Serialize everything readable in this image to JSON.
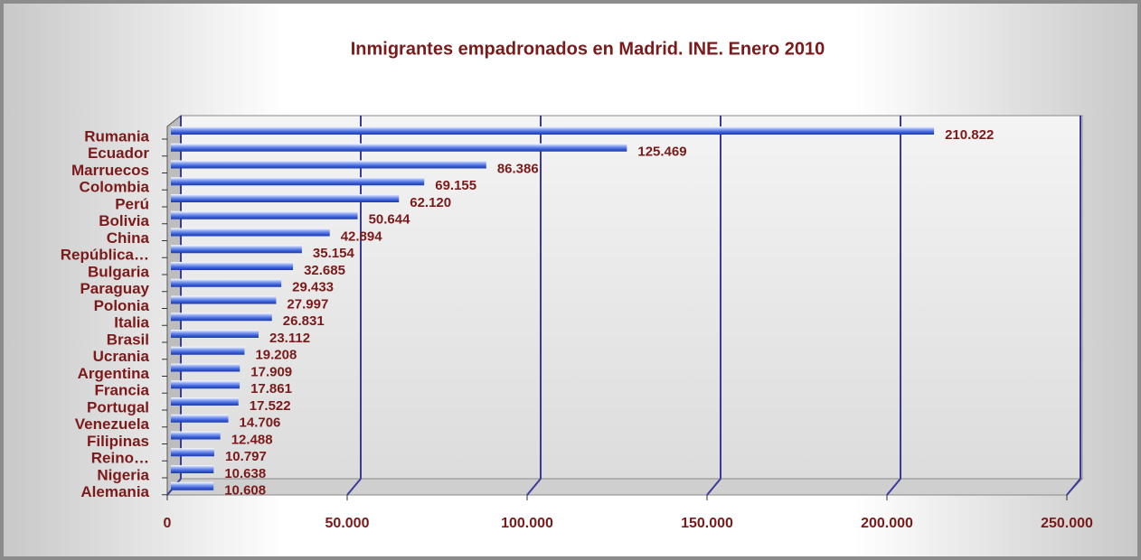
{
  "chart_data": {
    "type": "bar",
    "orientation": "horizontal",
    "title": "Inmigrantes empadronados  en Madrid. INE. Enero 2010",
    "categories": [
      "Rumania",
      "Ecuador",
      "Marruecos",
      "Colombia",
      "Perú",
      "Bolivia",
      "China",
      "República…",
      "Bulgaria",
      "Paraguay",
      "Polonia",
      "Italia",
      "Brasil",
      "Ucrania",
      "Argentina",
      "Francia",
      "Portugal",
      "Venezuela",
      "Filipinas",
      "Reino…",
      "Nigeria",
      "Alemania"
    ],
    "values": [
      210822,
      125469,
      86386,
      69155,
      62120,
      50644,
      42894,
      35154,
      32685,
      29433,
      27997,
      26831,
      23112,
      19208,
      17909,
      17861,
      17522,
      14706,
      12488,
      10797,
      10638,
      10608
    ],
    "value_labels": [
      "210.822",
      "125.469",
      "86.386",
      "69.155",
      "62.120",
      "50.644",
      "42.894",
      "35.154",
      "32.685",
      "29.433",
      "27.997",
      "26.831",
      "23.112",
      "19.208",
      "17.909",
      "17.861",
      "17.522",
      "14.706",
      "12.488",
      "10.797",
      "10.638",
      "10.608"
    ],
    "color": "#4a6fe0",
    "xlim": [
      0,
      250000
    ],
    "xticks": [
      0,
      {
        "value": 50000,
        "label": "50.000"
      },
      {
        "value": 100000,
        "label": "100.000"
      },
      {
        "value": 150000,
        "label": "150.000"
      },
      {
        "value": 200000,
        "label": "200.000"
      },
      {
        "value": 250000,
        "label": "250.000"
      }
    ],
    "grid": true
  }
}
